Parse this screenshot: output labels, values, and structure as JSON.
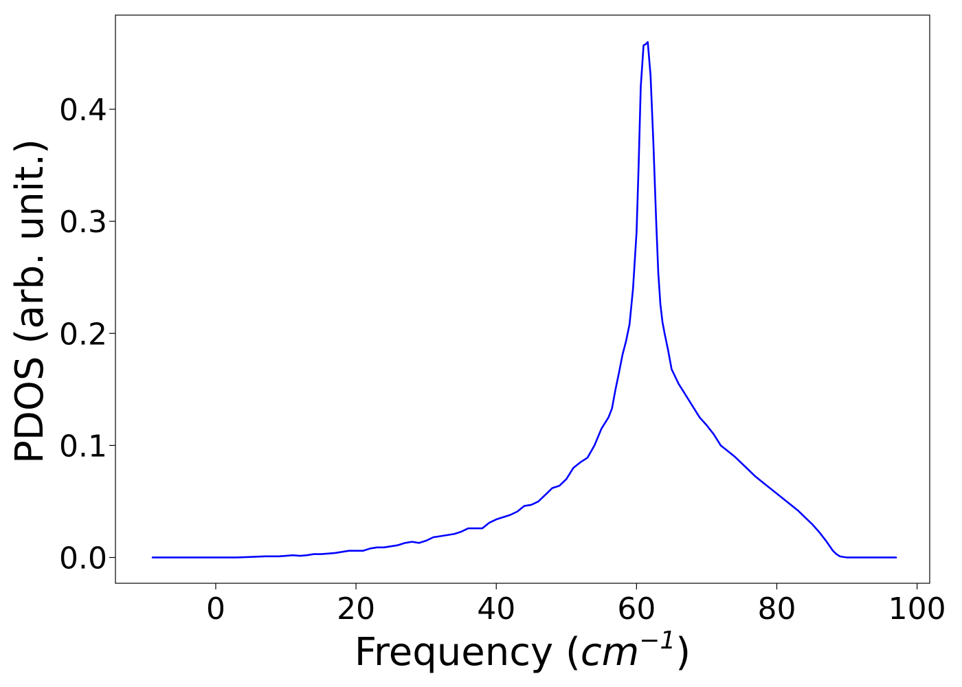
{
  "chart_data": {
    "type": "line",
    "title": "",
    "xlabel": "Frequency (cm⁻¹)",
    "xlabel_parts": {
      "prefix": "Frequency (",
      "unit_base": "cm",
      "unit_exponent": "−1",
      "suffix": ")"
    },
    "ylabel": "PDOS (arb. unit.)",
    "xlim": [
      -14.3,
      101.8
    ],
    "ylim": [
      -0.023,
      0.484
    ],
    "xticks": [
      0,
      20,
      40,
      60,
      80,
      100
    ],
    "xtick_labels": [
      "0",
      "20",
      "40",
      "60",
      "80",
      "100"
    ],
    "yticks": [
      0.0,
      0.1,
      0.2,
      0.3,
      0.4
    ],
    "ytick_labels": [
      "0.0",
      "0.1",
      "0.2",
      "0.3",
      "0.4"
    ],
    "grid": false,
    "legend": "none",
    "series": [
      {
        "color": "#0000ff",
        "x": [
          -9.0,
          -5.0,
          0.0,
          3.0,
          5.0,
          7.0,
          9.0,
          10.0,
          11.0,
          12.0,
          13.0,
          14.0,
          15.0,
          16.0,
          17.0,
          18.0,
          19.0,
          20.0,
          21.0,
          22.0,
          23.0,
          24.0,
          25.0,
          26.0,
          27.0,
          28.0,
          29.0,
          30.0,
          31.0,
          32.0,
          33.0,
          34.0,
          35.0,
          36.0,
          37.0,
          38.0,
          39.0,
          40.0,
          41.0,
          42.0,
          43.0,
          44.0,
          45.0,
          46.0,
          47.0,
          48.0,
          49.0,
          50.0,
          51.0,
          52.0,
          53.0,
          54.0,
          55.0,
          56.0,
          56.5,
          57.0,
          57.5,
          58.0,
          58.5,
          59.0,
          59.5,
          60.0,
          60.3,
          60.6,
          61.0,
          61.3,
          61.6,
          62.0,
          62.4,
          62.8,
          63.1,
          63.4,
          63.7,
          64.0,
          64.5,
          65.0,
          66.0,
          66.5,
          67.0,
          68.0,
          69.0,
          70.0,
          71.0,
          72.0,
          73.0,
          74.0,
          75.0,
          76.0,
          77.0,
          78.0,
          79.0,
          80.0,
          81.0,
          82.0,
          83.0,
          84.0,
          85.0,
          86.0,
          87.0,
          88.0,
          88.5,
          89.0,
          90.0,
          92.0,
          97.0
        ],
        "y": [
          0.0,
          0.0,
          0.0,
          0.0,
          0.0005,
          0.001,
          0.001,
          0.0015,
          0.002,
          0.0015,
          0.002,
          0.003,
          0.003,
          0.0035,
          0.004,
          0.005,
          0.006,
          0.006,
          0.006,
          0.008,
          0.009,
          0.009,
          0.01,
          0.011,
          0.013,
          0.014,
          0.013,
          0.015,
          0.018,
          0.019,
          0.02,
          0.021,
          0.023,
          0.026,
          0.026,
          0.026,
          0.031,
          0.034,
          0.036,
          0.038,
          0.041,
          0.046,
          0.047,
          0.05,
          0.056,
          0.062,
          0.064,
          0.07,
          0.08,
          0.085,
          0.089,
          0.1,
          0.115,
          0.125,
          0.133,
          0.15,
          0.165,
          0.181,
          0.193,
          0.208,
          0.24,
          0.29,
          0.35,
          0.42,
          0.457,
          0.458,
          0.46,
          0.43,
          0.37,
          0.3,
          0.254,
          0.226,
          0.21,
          0.2,
          0.185,
          0.168,
          0.155,
          0.15,
          0.145,
          0.135,
          0.125,
          0.118,
          0.11,
          0.1,
          0.095,
          0.09,
          0.084,
          0.078,
          0.072,
          0.067,
          0.062,
          0.057,
          0.052,
          0.047,
          0.042,
          0.036,
          0.03,
          0.023,
          0.015,
          0.006,
          0.003,
          0.001,
          0.0,
          0.0,
          0.0
        ]
      }
    ]
  }
}
